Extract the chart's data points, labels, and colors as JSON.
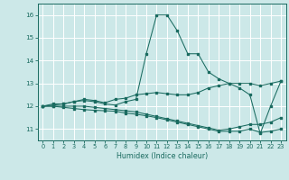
{
  "xlabel": "Humidex (Indice chaleur)",
  "background_color": "#cce8e8",
  "grid_color": "#ffffff",
  "line_color": "#1a6b60",
  "x": [
    0,
    1,
    2,
    3,
    4,
    5,
    6,
    7,
    8,
    9,
    10,
    11,
    12,
    13,
    14,
    15,
    16,
    17,
    18,
    19,
    20,
    21,
    22,
    23
  ],
  "series1": [
    12.0,
    12.1,
    12.1,
    12.2,
    12.25,
    12.2,
    12.1,
    12.05,
    12.2,
    12.3,
    14.3,
    16.0,
    16.0,
    15.3,
    14.3,
    14.3,
    13.5,
    13.2,
    13.0,
    12.8,
    12.5,
    10.8,
    12.0,
    13.1
  ],
  "series2": [
    12.0,
    12.05,
    12.1,
    12.2,
    12.3,
    12.25,
    12.15,
    12.3,
    12.35,
    12.5,
    12.55,
    12.6,
    12.55,
    12.5,
    12.5,
    12.6,
    12.8,
    12.9,
    13.0,
    13.0,
    13.0,
    12.9,
    13.0,
    13.1
  ],
  "series3": [
    12.0,
    12.0,
    12.0,
    12.0,
    12.0,
    11.95,
    11.9,
    11.85,
    11.8,
    11.75,
    11.65,
    11.55,
    11.45,
    11.35,
    11.25,
    11.15,
    11.05,
    10.95,
    11.0,
    11.1,
    11.2,
    11.2,
    11.3,
    11.5
  ],
  "series4": [
    12.0,
    12.0,
    11.95,
    11.9,
    11.85,
    11.82,
    11.8,
    11.78,
    11.7,
    11.65,
    11.58,
    11.5,
    11.4,
    11.3,
    11.2,
    11.1,
    11.0,
    10.9,
    10.9,
    10.9,
    11.0,
    10.85,
    10.9,
    11.0
  ],
  "ylim": [
    10.5,
    16.5
  ],
  "yticks": [
    11,
    12,
    13,
    14,
    15,
    16
  ],
  "xticks": [
    0,
    1,
    2,
    3,
    4,
    5,
    6,
    7,
    8,
    9,
    10,
    11,
    12,
    13,
    14,
    15,
    16,
    17,
    18,
    19,
    20,
    21,
    22,
    23
  ]
}
